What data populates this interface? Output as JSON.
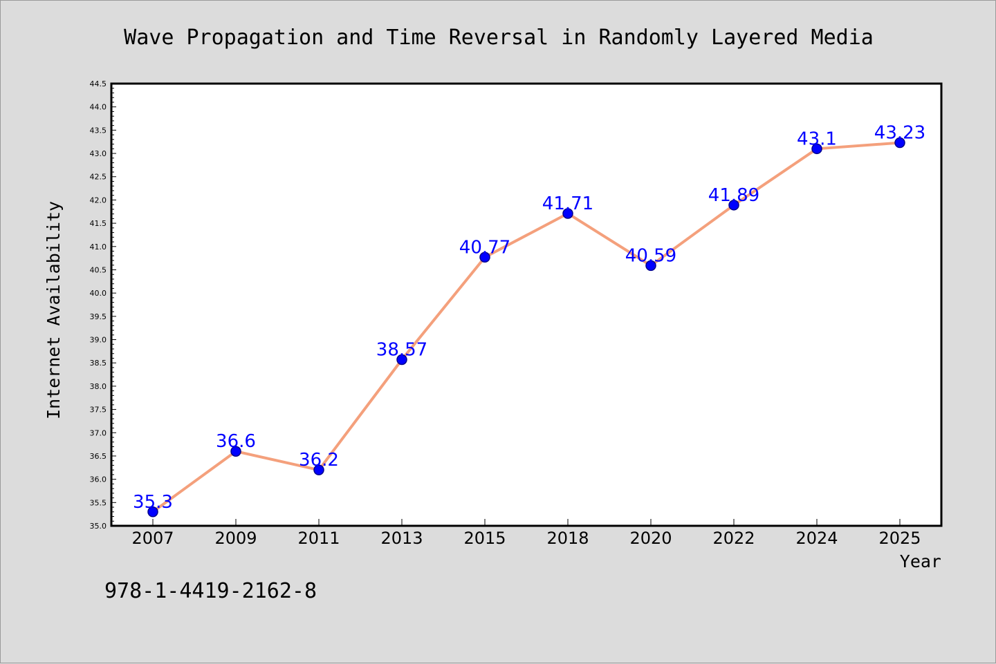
{
  "chart_data": {
    "type": "line",
    "title": "Wave Propagation and Time Reversal in Randomly Layered Media",
    "xlabel": "Year",
    "ylabel": "Internet Availability",
    "categories": [
      "2007",
      "2009",
      "2011",
      "2013",
      "2015",
      "2018",
      "2020",
      "2022",
      "2024",
      "2025"
    ],
    "series": [
      {
        "values": [
          35.3,
          36.6,
          36.2,
          38.57,
          40.77,
          41.71,
          40.59,
          41.89,
          43.1,
          43.23
        ],
        "data_labels": [
          "35.3",
          "36.6",
          "36.2",
          "38.57",
          "40.77",
          "41.71",
          "40.59",
          "41.89",
          "43.1",
          "43.23"
        ]
      }
    ],
    "ylim": [
      35.0,
      44.5
    ],
    "yticks": [
      "35.0",
      "35.5",
      "36.0",
      "36.5",
      "37.0",
      "37.5",
      "38.0",
      "38.5",
      "39.0",
      "39.5",
      "40.0",
      "40.5",
      "41.0",
      "41.5",
      "42.0",
      "42.5",
      "43.0",
      "43.5",
      "44.0",
      "44.5"
    ],
    "grid": false,
    "legend": "none",
    "colors": {
      "line": "#f4a07c",
      "marker_fill": "#0000ff",
      "marker_edge": "#00008b",
      "data_label": "#0000ff",
      "background": "#dcdcdc",
      "plot_background": "#ffffff"
    }
  },
  "footer_code": "978-1-4419-2162-8"
}
